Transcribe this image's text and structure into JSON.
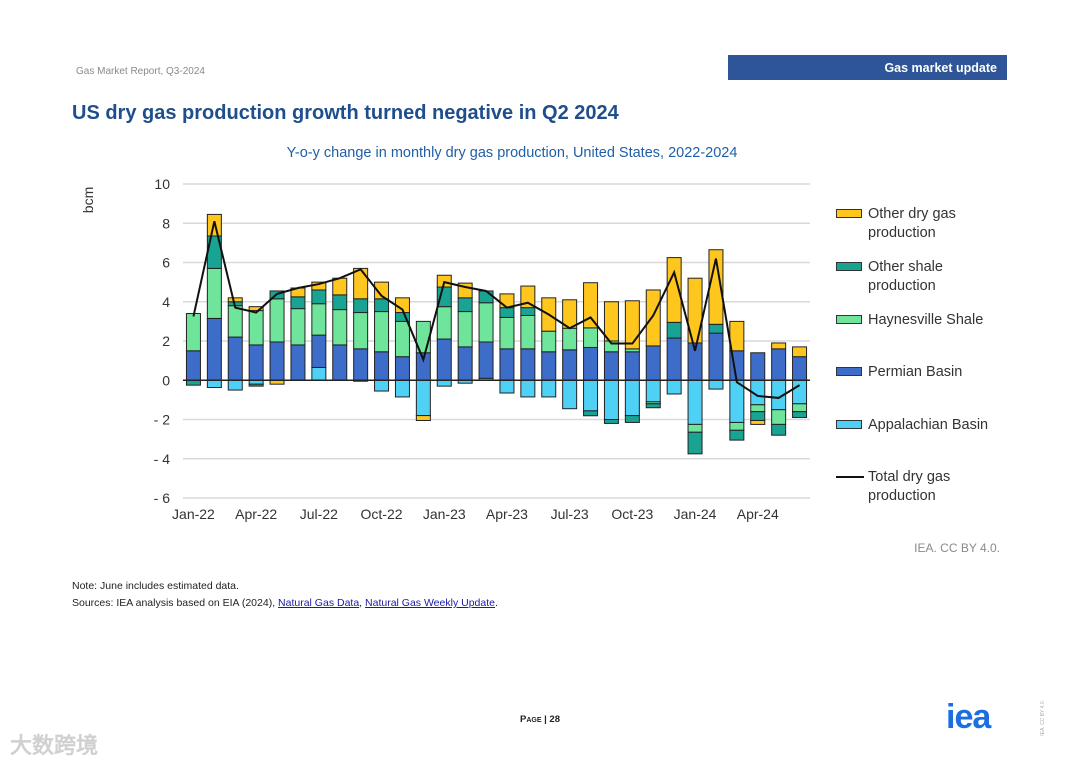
{
  "header": {
    "report_name": "Gas Market Report, Q3-2024",
    "section": "Gas market update"
  },
  "page_title": "US dry gas production growth turned negative in Q2 2024",
  "chart_data": {
    "type": "bar",
    "stacked": true,
    "title": "Y-o-y change in monthly dry gas production, United States, 2022-2024",
    "ylabel": "bcm",
    "xlabel": "",
    "ylim": [
      -6,
      10
    ],
    "yticks": [
      10,
      8,
      6,
      4,
      2,
      0,
      -2,
      -4,
      -6
    ],
    "ytick_labels": [
      "10",
      "8",
      "6",
      "4",
      "2",
      "0",
      "- 2",
      "- 4",
      "- 6"
    ],
    "grid": true,
    "legend_position": "right",
    "categories": [
      "Jan-22",
      "Feb-22",
      "Mar-22",
      "Apr-22",
      "May-22",
      "Jun-22",
      "Jul-22",
      "Aug-22",
      "Sep-22",
      "Oct-22",
      "Nov-22",
      "Dec-22",
      "Jan-23",
      "Feb-23",
      "Mar-23",
      "Apr-23",
      "May-23",
      "Jun-23",
      "Jul-23",
      "Aug-23",
      "Sep-23",
      "Oct-23",
      "Nov-23",
      "Dec-23",
      "Jan-24",
      "Feb-24",
      "Mar-24",
      "Apr-24",
      "May-24",
      "Jun-24"
    ],
    "xtick_labels": [
      "Jan-22",
      "Apr-22",
      "Jul-22",
      "Oct-22",
      "Jan-23",
      "Apr-23",
      "Jul-23",
      "Oct-23",
      "Jan-24",
      "Apr-24"
    ],
    "series": [
      {
        "name": "Appalachian Basin",
        "color": "#4FD1F5",
        "values": [
          0,
          -0.37,
          -0.5,
          -0.2,
          0,
          0,
          0.65,
          0,
          -0.05,
          -0.55,
          -0.85,
          -1.8,
          -0.3,
          -0.15,
          0.1,
          -0.65,
          -0.85,
          -0.85,
          -1.45,
          -1.56,
          -2.0,
          -1.8,
          -1.1,
          -0.7,
          -2.25,
          -0.45,
          -2.15,
          -1.25,
          -1.5,
          -1.2
        ]
      },
      {
        "name": "Permian Basin",
        "color": "#3D6CC9",
        "values": [
          1.5,
          3.15,
          2.2,
          1.8,
          1.95,
          1.8,
          1.65,
          1.8,
          1.6,
          1.45,
          1.2,
          1.4,
          2.1,
          1.7,
          1.85,
          1.6,
          1.6,
          1.45,
          1.55,
          1.67,
          1.45,
          1.45,
          1.75,
          2.15,
          1.9,
          2.4,
          1.5,
          1.4,
          1.6,
          1.2
        ]
      },
      {
        "name": "Haynesville Shale",
        "color": "#6EE59A",
        "values": [
          1.9,
          2.55,
          1.6,
          1.75,
          2.2,
          1.85,
          1.6,
          1.8,
          1.85,
          2.05,
          1.8,
          1.6,
          1.65,
          1.8,
          2.0,
          1.6,
          1.7,
          1.05,
          1.1,
          1.0,
          0.55,
          0.15,
          -0.1,
          0,
          -0.4,
          0,
          -0.4,
          -0.35,
          -0.75,
          -0.4
        ]
      },
      {
        "name": "Other shale production",
        "color": "#19A393",
        "values": [
          -0.25,
          1.65,
          0.2,
          -0.1,
          0.4,
          0.6,
          0.7,
          0.75,
          0.7,
          0.65,
          0.45,
          0,
          1.0,
          0.7,
          0.6,
          0.5,
          0.4,
          0,
          0,
          -0.25,
          -0.2,
          -0.35,
          -0.2,
          0.8,
          -1.1,
          0.45,
          -0.5,
          -0.45,
          -0.55,
          -0.3
        ]
      },
      {
        "name": "Other dry gas production",
        "color": "#FFC61E",
        "values": [
          0,
          1.1,
          0.2,
          0.2,
          -0.2,
          0.45,
          0.4,
          0.85,
          1.55,
          0.85,
          0.75,
          -0.25,
          0.6,
          0.75,
          0,
          0.7,
          1.1,
          1.7,
          1.45,
          2.3,
          2.0,
          2.45,
          2.85,
          3.3,
          3.3,
          3.8,
          1.5,
          -0.2,
          0.3,
          0.5
        ]
      }
    ],
    "line_series": {
      "name": "Total dry gas production",
      "color": "#111111",
      "values": [
        3.25,
        8.1,
        3.7,
        3.45,
        4.4,
        4.7,
        4.9,
        5.2,
        5.65,
        4.3,
        3.6,
        1.05,
        5.0,
        4.75,
        4.55,
        3.7,
        3.95,
        3.35,
        2.65,
        3.2,
        1.87,
        1.87,
        3.3,
        5.5,
        1.5,
        6.2,
        -0.1,
        -0.8,
        -0.9,
        -0.25
      ]
    }
  },
  "legend": [
    {
      "label": "Other dry gas production",
      "color": "#FFC61E",
      "kind": "bar"
    },
    {
      "label": "Other shale production",
      "color": "#19A393",
      "kind": "bar"
    },
    {
      "label": "Haynesville Shale",
      "color": "#6EE59A",
      "kind": "bar"
    },
    {
      "label": "Permian Basin",
      "color": "#3D6CC9",
      "kind": "bar"
    },
    {
      "label": "Appalachian Basin",
      "color": "#4FD1F5",
      "kind": "bar"
    },
    {
      "label": "Total dry gas production",
      "color": "#111111",
      "kind": "line"
    }
  ],
  "credit": "IEA. CC BY 4.0.",
  "note": "Note: June includes estimated data.",
  "sources": {
    "prefix": "Sources: IEA analysis based on EIA (2024), ",
    "link1": "Natural Gas Data",
    "sep": ", ",
    "link2": "Natural Gas Weekly Update",
    "suffix": "."
  },
  "footer": {
    "page": "Page | 28",
    "logo": "iea",
    "license_tiny": "IEA. CC BY 4.0.",
    "watermark": "大数跨境"
  },
  "colors": {
    "title": "#1F4E8C",
    "section_box": "#2E5597",
    "logo": "#1C6FE0"
  }
}
